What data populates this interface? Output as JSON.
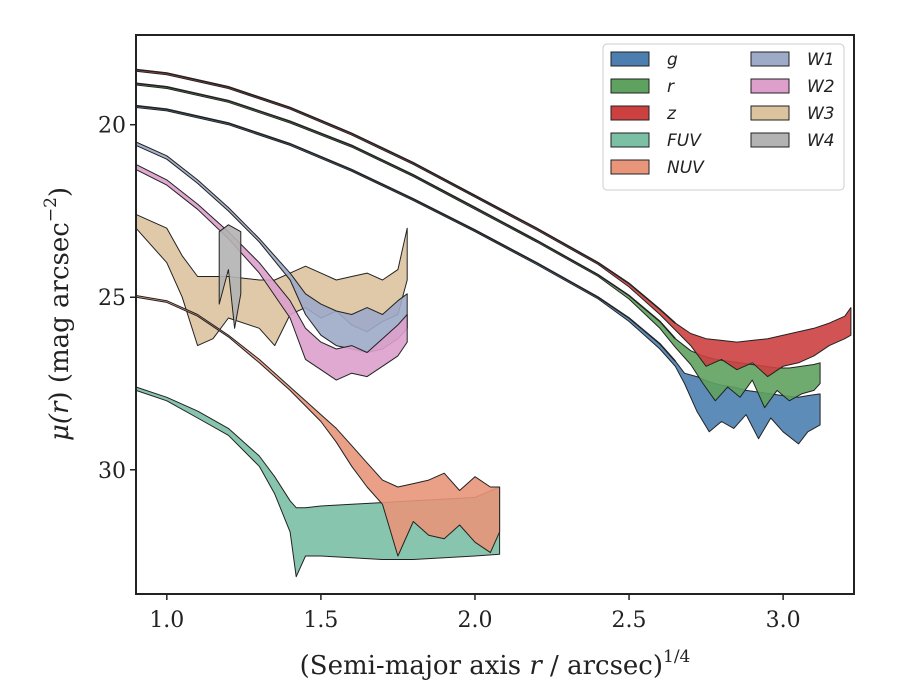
{
  "chart_data": {
    "type": "area",
    "xlabel": "(Semi-major axis r / arcsec)^{1/4}",
    "xlabel_parts": {
      "prefix": "(Semi-major axis ",
      "var": "r",
      "middle": " / arcsec)",
      "superscript": "1/4"
    },
    "ylabel": "μ(r) (mag arcsec^{-2})",
    "ylabel_parts": {
      "mu": "μ(",
      "var": "r",
      "rest": ") (mag arcsec",
      "superscript": "−2",
      "close": ")"
    },
    "xlim": [
      0.9,
      3.23
    ],
    "ylim": [
      33.6,
      17.4
    ],
    "y_inverted": true,
    "xticks": [
      1.0,
      1.5,
      2.0,
      2.5,
      3.0
    ],
    "xtick_labels": [
      "1.0",
      "1.5",
      "2.0",
      "2.5",
      "3.0"
    ],
    "yticks": [
      20,
      25,
      30
    ],
    "ytick_labels": [
      "20",
      "25",
      "30"
    ],
    "grid": false,
    "legend_position": "top-right",
    "legend_columns": 2,
    "series": [
      {
        "name": "g",
        "color": "#4C7FB0",
        "x": [
          0.9,
          1.0,
          1.2,
          1.4,
          1.6,
          1.8,
          2.0,
          2.2,
          2.4,
          2.5,
          2.6,
          2.65,
          2.68,
          2.72,
          2.76,
          2.8,
          2.84,
          2.88,
          2.92,
          2.96,
          3.0,
          3.05,
          3.08,
          3.12
        ],
        "y_upper": [
          19.45,
          19.55,
          19.95,
          20.55,
          21.3,
          22.15,
          23.05,
          24.0,
          25.0,
          25.6,
          26.35,
          26.85,
          27.2,
          27.3,
          27.45,
          27.55,
          27.6,
          27.7,
          27.75,
          27.8,
          27.85,
          27.9,
          27.85,
          27.8
        ],
        "y_lower": [
          19.5,
          19.6,
          20.0,
          20.6,
          21.35,
          22.2,
          23.1,
          24.05,
          25.05,
          25.7,
          26.5,
          27.0,
          27.5,
          28.3,
          28.9,
          28.6,
          28.8,
          28.4,
          29.1,
          28.5,
          28.9,
          29.25,
          28.9,
          28.7
        ]
      },
      {
        "name": "r",
        "color": "#5FA25F",
        "x": [
          0.9,
          1.0,
          1.2,
          1.4,
          1.6,
          1.8,
          2.0,
          2.2,
          2.4,
          2.5,
          2.6,
          2.65,
          2.7,
          2.74,
          2.78,
          2.82,
          2.86,
          2.9,
          2.94,
          2.98,
          3.02,
          3.06,
          3.1,
          3.12
        ],
        "y_upper": [
          18.8,
          18.9,
          19.3,
          19.9,
          20.6,
          21.45,
          22.4,
          23.35,
          24.35,
          24.95,
          25.7,
          26.2,
          26.55,
          26.7,
          26.8,
          26.85,
          26.9,
          26.95,
          27.0,
          27.05,
          27.05,
          27.0,
          26.95,
          26.9
        ],
        "y_lower": [
          18.85,
          18.95,
          19.35,
          19.95,
          20.65,
          21.5,
          22.45,
          23.4,
          24.4,
          25.05,
          25.9,
          26.45,
          26.95,
          27.5,
          28.0,
          27.6,
          27.9,
          27.4,
          28.2,
          27.7,
          28.0,
          27.8,
          27.7,
          27.5
        ]
      },
      {
        "name": "z",
        "color": "#CC4040",
        "x": [
          0.9,
          1.0,
          1.2,
          1.4,
          1.6,
          1.8,
          2.0,
          2.2,
          2.4,
          2.5,
          2.6,
          2.65,
          2.7,
          2.75,
          2.8,
          2.85,
          2.9,
          2.95,
          3.0,
          3.05,
          3.1,
          3.15,
          3.2,
          3.22
        ],
        "y_upper": [
          18.4,
          18.5,
          18.9,
          19.5,
          20.25,
          21.1,
          22.05,
          23.0,
          24.0,
          24.6,
          25.35,
          25.75,
          26.05,
          26.2,
          26.25,
          26.3,
          26.25,
          26.2,
          26.1,
          26.0,
          25.9,
          25.75,
          25.55,
          25.3
        ],
        "y_lower": [
          18.45,
          18.55,
          18.95,
          19.55,
          20.3,
          21.15,
          22.1,
          23.05,
          24.05,
          24.7,
          25.5,
          25.95,
          26.4,
          27.0,
          26.8,
          27.1,
          26.9,
          27.3,
          27.0,
          26.9,
          26.7,
          26.4,
          26.2,
          26.1
        ]
      },
      {
        "name": "FUV",
        "color": "#7BBFA5",
        "x": [
          0.9,
          1.0,
          1.1,
          1.2,
          1.3,
          1.35,
          1.4,
          1.42,
          1.45,
          1.5,
          1.6,
          1.7,
          1.8,
          1.9,
          2.0,
          2.08
        ],
        "y_upper": [
          27.6,
          27.9,
          28.3,
          28.8,
          29.6,
          30.2,
          30.9,
          31.1,
          31.1,
          31.05,
          31.0,
          30.95,
          30.9,
          30.85,
          30.8,
          30.5
        ],
        "y_lower": [
          27.7,
          28.0,
          28.5,
          29.0,
          29.9,
          30.7,
          31.8,
          33.1,
          32.5,
          32.5,
          32.55,
          32.6,
          32.6,
          32.55,
          32.5,
          32.45
        ]
      },
      {
        "name": "NUV",
        "color": "#E8957A",
        "x": [
          0.9,
          1.0,
          1.1,
          1.2,
          1.3,
          1.4,
          1.5,
          1.55,
          1.6,
          1.65,
          1.7,
          1.75,
          1.8,
          1.85,
          1.9,
          1.95,
          2.0,
          2.05,
          2.08
        ],
        "y_upper": [
          24.95,
          25.1,
          25.5,
          26.1,
          26.8,
          27.6,
          28.4,
          28.8,
          29.3,
          29.8,
          30.3,
          30.5,
          30.4,
          30.3,
          30.1,
          30.6,
          30.2,
          30.5,
          30.5
        ],
        "y_lower": [
          25.0,
          25.15,
          25.55,
          26.15,
          26.9,
          27.7,
          28.6,
          29.2,
          29.9,
          30.5,
          31.0,
          32.5,
          31.5,
          31.9,
          32.0,
          31.6,
          32.1,
          32.4,
          31.8
        ]
      },
      {
        "name": "W1",
        "color": "#9DAAC8",
        "x": [
          0.9,
          1.0,
          1.1,
          1.2,
          1.3,
          1.4,
          1.45,
          1.5,
          1.55,
          1.6,
          1.65,
          1.7,
          1.75,
          1.78
        ],
        "y_upper": [
          20.5,
          20.9,
          21.6,
          22.4,
          23.3,
          24.3,
          24.9,
          25.2,
          25.4,
          25.5,
          25.3,
          25.5,
          25.1,
          24.9
        ],
        "y_lower": [
          20.6,
          21.0,
          21.7,
          22.5,
          23.4,
          24.5,
          25.5,
          26.1,
          26.4,
          26.5,
          26.6,
          26.5,
          26.2,
          25.9
        ]
      },
      {
        "name": "W2",
        "color": "#DDA0CC",
        "x": [
          0.9,
          1.0,
          1.1,
          1.2,
          1.3,
          1.4,
          1.45,
          1.5,
          1.55,
          1.6,
          1.65,
          1.7,
          1.75,
          1.78
        ],
        "y_upper": [
          21.15,
          21.6,
          22.3,
          23.1,
          24.0,
          25.1,
          25.9,
          26.3,
          26.5,
          26.4,
          26.6,
          26.2,
          25.8,
          25.5
        ],
        "y_lower": [
          21.3,
          21.75,
          22.45,
          23.3,
          24.3,
          25.6,
          26.8,
          27.1,
          27.4,
          27.2,
          27.3,
          27.0,
          26.7,
          26.3
        ]
      },
      {
        "name": "W3",
        "color": "#DCC3A0",
        "x": [
          0.9,
          1.0,
          1.05,
          1.1,
          1.15,
          1.2,
          1.3,
          1.35,
          1.4,
          1.45,
          1.5,
          1.55,
          1.6,
          1.65,
          1.7,
          1.75,
          1.78
        ],
        "y_upper": [
          22.6,
          23.0,
          23.8,
          24.4,
          24.4,
          24.4,
          24.5,
          24.5,
          24.3,
          24.1,
          24.3,
          24.5,
          24.4,
          24.3,
          24.5,
          24.2,
          23.0
        ],
        "y_lower": [
          23.0,
          24.0,
          25.0,
          26.4,
          26.2,
          25.6,
          25.9,
          26.4,
          25.5,
          25.3,
          25.6,
          25.4,
          25.8,
          26.0,
          25.7,
          25.5,
          24.5
        ]
      },
      {
        "name": "W4",
        "color": "#B3B3B3",
        "x": [
          1.17,
          1.2,
          1.22,
          1.24
        ],
        "y_upper": [
          23.1,
          22.9,
          23.0,
          23.1
        ],
        "y_lower": [
          25.2,
          24.2,
          25.9,
          24.9
        ]
      }
    ],
    "legend_order": [
      "g",
      "r",
      "z",
      "FUV",
      "NUV",
      "W1",
      "W2",
      "W3",
      "W4"
    ],
    "legend_layout": [
      [
        "g",
        "r",
        "z",
        "FUV",
        "NUV"
      ],
      [
        "W1",
        "W2",
        "W3",
        "W4"
      ]
    ],
    "profile_lines": {
      "color": "#222222",
      "x": [
        0.9,
        1.0,
        1.2,
        1.4,
        1.6,
        1.8,
        2.0,
        2.2,
        2.4,
        2.5,
        2.6,
        2.65
      ],
      "y_sets": [
        [
          18.4,
          18.5,
          18.9,
          19.5,
          20.25,
          21.1,
          22.05,
          23.0,
          24.0,
          24.6,
          25.35,
          25.75
        ],
        [
          18.8,
          18.9,
          19.3,
          19.9,
          20.6,
          21.45,
          22.4,
          23.35,
          24.35,
          24.95,
          25.7,
          26.2
        ],
        [
          19.45,
          19.55,
          19.95,
          20.55,
          21.3,
          22.15,
          23.05,
          24.0,
          25.0,
          25.6,
          26.35,
          26.85
        ]
      ]
    }
  }
}
